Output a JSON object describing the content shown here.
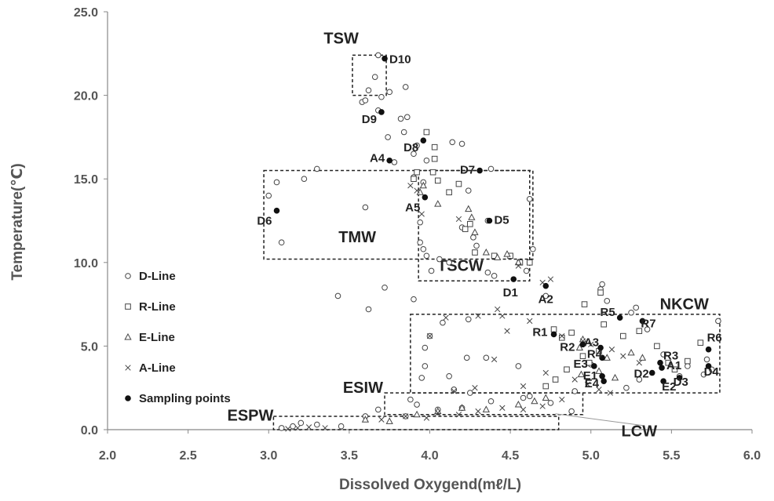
{
  "chart_data": {
    "type": "scatter",
    "xlabel": "Dissolved Oxygend(mℓ/L)",
    "ylabel": "Temperature(℃)",
    "xlim": [
      2.0,
      6.0
    ],
    "ylim": [
      0.0,
      25.0
    ],
    "xticks": [
      "2.0",
      "2.5",
      "3.0",
      "3.5",
      "4.0",
      "4.5",
      "5.0",
      "5.5",
      "6.0"
    ],
    "yticks": [
      "0.0",
      "5.0",
      "10.0",
      "15.0",
      "20.0",
      "25.0"
    ],
    "grid": false,
    "legend_position": "left",
    "series": [
      {
        "name": "D-Line",
        "marker": "circle-open",
        "points": [
          [
            3.68,
            22.4
          ],
          [
            3.66,
            21.1
          ],
          [
            3.75,
            20.2
          ],
          [
            3.85,
            20.5
          ],
          [
            3.62,
            20.3
          ],
          [
            3.58,
            19.6
          ],
          [
            3.6,
            19.7
          ],
          [
            3.68,
            19.1
          ],
          [
            3.7,
            19.9
          ],
          [
            3.82,
            18.6
          ],
          [
            3.86,
            18.7
          ],
          [
            3.84,
            17.8
          ],
          [
            3.74,
            17.5
          ],
          [
            3.92,
            17.0
          ],
          [
            3.98,
            16.1
          ],
          [
            4.14,
            17.2
          ],
          [
            4.2,
            17.1
          ],
          [
            3.9,
            16.5
          ],
          [
            3.78,
            16.0
          ],
          [
            3.3,
            15.6
          ],
          [
            4.38,
            15.6
          ],
          [
            3.9,
            15.1
          ],
          [
            3.96,
            14.8
          ],
          [
            3.22,
            15.0
          ],
          [
            3.05,
            14.8
          ],
          [
            3.0,
            14.0
          ],
          [
            3.6,
            13.3
          ],
          [
            4.24,
            14.3
          ],
          [
            4.62,
            13.8
          ],
          [
            4.36,
            12.5
          ],
          [
            4.64,
            10.8
          ],
          [
            3.94,
            12.4
          ],
          [
            4.2,
            12.1
          ],
          [
            4.27,
            11.5
          ],
          [
            4.29,
            11.0
          ],
          [
            3.96,
            10.8
          ],
          [
            3.94,
            11.2
          ],
          [
            3.98,
            10.4
          ],
          [
            4.06,
            10.2
          ],
          [
            4.12,
            10.0
          ],
          [
            4.01,
            9.5
          ],
          [
            4.36,
            9.4
          ],
          [
            4.4,
            9.2
          ],
          [
            4.6,
            9.5
          ],
          [
            3.43,
            8.0
          ],
          [
            3.72,
            8.5
          ],
          [
            3.62,
            7.2
          ],
          [
            3.9,
            7.8
          ],
          [
            4.72,
            8.0
          ],
          [
            5.06,
            8.4
          ],
          [
            5.07,
            8.7
          ],
          [
            5.1,
            7.7
          ],
          [
            5.25,
            7.0
          ],
          [
            5.28,
            7.3
          ],
          [
            5.35,
            6.0
          ],
          [
            5.79,
            6.5
          ],
          [
            4.08,
            6.4
          ],
          [
            4.24,
            6.6
          ],
          [
            4.0,
            5.6
          ],
          [
            3.97,
            4.9
          ],
          [
            3.97,
            3.8
          ],
          [
            3.95,
            3.1
          ],
          [
            4.12,
            3.2
          ],
          [
            4.23,
            4.3
          ],
          [
            4.35,
            4.3
          ],
          [
            4.55,
            3.8
          ],
          [
            4.15,
            2.4
          ],
          [
            4.25,
            2.2
          ],
          [
            4.62,
            2.0
          ],
          [
            4.9,
            2.3
          ],
          [
            3.88,
            1.8
          ],
          [
            3.92,
            1.5
          ],
          [
            4.05,
            1.2
          ],
          [
            4.2,
            1.3
          ],
          [
            4.38,
            1.7
          ],
          [
            4.58,
            1.9
          ],
          [
            4.75,
            1.6
          ],
          [
            4.88,
            1.1
          ],
          [
            3.68,
            1.2
          ],
          [
            3.6,
            0.8
          ],
          [
            3.85,
            0.8
          ],
          [
            3.2,
            0.4
          ],
          [
            3.08,
            0.1
          ],
          [
            3.15,
            0.2
          ],
          [
            3.3,
            0.3
          ],
          [
            3.45,
            0.2
          ],
          [
            3.08,
            11.2
          ],
          [
            5.0,
            3.9
          ],
          [
            5.45,
            4.5
          ],
          [
            5.55,
            3.2
          ],
          [
            5.6,
            3.8
          ],
          [
            5.7,
            3.3
          ],
          [
            5.75,
            3.6
          ],
          [
            5.72,
            4.2
          ],
          [
            5.3,
            3.0
          ],
          [
            5.22,
            2.5
          ]
        ]
      },
      {
        "name": "R-Line",
        "marker": "square-open",
        "points": [
          [
            3.98,
            17.8
          ],
          [
            4.03,
            16.9
          ],
          [
            4.03,
            16.2
          ],
          [
            3.92,
            15.4
          ],
          [
            3.9,
            15.0
          ],
          [
            4.02,
            15.4
          ],
          [
            4.05,
            14.9
          ],
          [
            4.12,
            14.2
          ],
          [
            4.18,
            14.7
          ],
          [
            4.22,
            12.0
          ],
          [
            4.25,
            12.3
          ],
          [
            4.28,
            10.6
          ],
          [
            4.4,
            10.4
          ],
          [
            4.5,
            10.4
          ],
          [
            4.56,
            10.0
          ],
          [
            4.62,
            10.0
          ],
          [
            4.77,
            6.0
          ],
          [
            4.82,
            5.5
          ],
          [
            4.88,
            5.8
          ],
          [
            4.96,
            7.5
          ],
          [
            5.06,
            8.2
          ],
          [
            5.08,
            6.3
          ],
          [
            5.2,
            5.6
          ],
          [
            5.3,
            5.9
          ],
          [
            5.41,
            5.0
          ],
          [
            5.48,
            4.0
          ],
          [
            5.52,
            3.6
          ],
          [
            5.6,
            4.1
          ],
          [
            5.68,
            5.2
          ],
          [
            5.05,
            4.7
          ],
          [
            4.95,
            4.4
          ],
          [
            4.99,
            4.0
          ],
          [
            4.85,
            3.6
          ],
          [
            4.78,
            3.0
          ],
          [
            4.72,
            2.6
          ]
        ]
      },
      {
        "name": "E-Line",
        "marker": "triangle-open",
        "points": [
          [
            3.94,
            14.2
          ],
          [
            3.96,
            14.6
          ],
          [
            4.05,
            13.5
          ],
          [
            4.24,
            13.2
          ],
          [
            4.26,
            12.7
          ],
          [
            4.28,
            11.8
          ],
          [
            4.35,
            10.6
          ],
          [
            4.42,
            10.3
          ],
          [
            4.48,
            10.5
          ],
          [
            4.55,
            10.0
          ],
          [
            4.95,
            5.4
          ],
          [
            4.93,
            4.9
          ],
          [
            5.1,
            4.3
          ],
          [
            5.25,
            4.6
          ],
          [
            5.32,
            4.3
          ],
          [
            4.94,
            3.3
          ],
          [
            5.05,
            3.5
          ],
          [
            5.15,
            3.1
          ],
          [
            4.05,
            1.1
          ],
          [
            4.2,
            1.3
          ],
          [
            4.35,
            1.2
          ],
          [
            4.55,
            1.5
          ],
          [
            4.65,
            1.7
          ],
          [
            4.72,
            1.9
          ],
          [
            3.75,
            0.5
          ],
          [
            3.6,
            0.6
          ],
          [
            3.92,
            0.9
          ]
        ]
      },
      {
        "name": "A-Line",
        "marker": "cross",
        "points": [
          [
            3.88,
            14.6
          ],
          [
            3.92,
            14.3
          ],
          [
            3.95,
            12.9
          ],
          [
            4.18,
            12.6
          ],
          [
            4.55,
            9.8
          ],
          [
            4.7,
            8.8
          ],
          [
            4.75,
            9.0
          ],
          [
            4.0,
            5.6
          ],
          [
            4.1,
            6.7
          ],
          [
            4.3,
            6.8
          ],
          [
            4.42,
            7.2
          ],
          [
            4.45,
            6.8
          ],
          [
            4.62,
            6.5
          ],
          [
            4.48,
            5.9
          ],
          [
            4.82,
            5.6
          ],
          [
            4.95,
            5.3
          ],
          [
            5.0,
            5.1
          ],
          [
            5.13,
            4.8
          ],
          [
            5.2,
            4.4
          ],
          [
            5.3,
            4.0
          ],
          [
            4.4,
            4.2
          ],
          [
            4.15,
            2.3
          ],
          [
            4.28,
            2.5
          ],
          [
            4.58,
            2.6
          ],
          [
            4.72,
            3.4
          ],
          [
            4.9,
            3.0
          ],
          [
            4.98,
            2.7
          ],
          [
            5.05,
            2.4
          ],
          [
            5.12,
            2.2
          ],
          [
            4.05,
            1.0
          ],
          [
            4.18,
            0.9
          ],
          [
            4.3,
            1.1
          ],
          [
            4.45,
            1.3
          ],
          [
            4.58,
            1.2
          ],
          [
            4.7,
            1.4
          ],
          [
            4.82,
            1.8
          ],
          [
            3.98,
            0.7
          ],
          [
            3.12,
            0.05
          ],
          [
            3.18,
            0.1
          ],
          [
            3.25,
            0.15
          ],
          [
            3.35,
            0.1
          ],
          [
            3.7,
            0.6
          ],
          [
            3.85,
            0.8
          ]
        ]
      },
      {
        "name": "Sampling points",
        "marker": "circle-filled",
        "points": [
          [
            "D10",
            3.72,
            22.2
          ],
          [
            "D9",
            3.7,
            19.0
          ],
          [
            "D8",
            3.96,
            17.3
          ],
          [
            "A4",
            3.75,
            16.1
          ],
          [
            "D7",
            4.31,
            15.5
          ],
          [
            "A5",
            3.97,
            13.9
          ],
          [
            "D6",
            3.05,
            13.1
          ],
          [
            "D5",
            4.37,
            12.5
          ],
          [
            "D1",
            4.52,
            9.0
          ],
          [
            "A2",
            4.72,
            8.6
          ],
          [
            "R5",
            5.18,
            6.7
          ],
          [
            "R7",
            5.32,
            6.5
          ],
          [
            "R1",
            4.77,
            5.7
          ],
          [
            "A3",
            5.06,
            4.9
          ],
          [
            "R6",
            5.73,
            4.8
          ],
          [
            "R2",
            4.95,
            5.1
          ],
          [
            "R4",
            5.07,
            4.3
          ],
          [
            "R3",
            5.43,
            4.0
          ],
          [
            "E3",
            5.02,
            3.8
          ],
          [
            "A1",
            5.44,
            3.7
          ],
          [
            "E1",
            5.07,
            3.2
          ],
          [
            "D2",
            5.38,
            3.4
          ],
          [
            "E4",
            5.08,
            2.9
          ],
          [
            "D3",
            5.55,
            3.1
          ],
          [
            "E2",
            5.45,
            2.9
          ],
          [
            "D4",
            5.73,
            3.8
          ]
        ]
      }
    ],
    "water_masses": [
      {
        "label": "TSW",
        "x": [
          3.52,
          3.73
        ],
        "y": [
          20.0,
          22.4
        ]
      },
      {
        "label": "TMW",
        "x": [
          2.97,
          4.64
        ],
        "y": [
          10.2,
          15.5
        ]
      },
      {
        "label": "TSCW",
        "x": [
          3.93,
          4.62
        ],
        "y": [
          8.9,
          15.5
        ]
      },
      {
        "label": "NKCW",
        "x": [
          3.88,
          5.8
        ],
        "y": [
          2.2,
          6.9
        ]
      },
      {
        "label": "ESIW",
        "x": [
          3.72,
          4.95
        ],
        "y": [
          0.9,
          2.2
        ]
      },
      {
        "label": "ESPW",
        "x": [
          3.03,
          4.8
        ],
        "y": [
          0.0,
          0.8
        ]
      },
      {
        "label": "LCW",
        "x": null,
        "y": null
      }
    ]
  }
}
